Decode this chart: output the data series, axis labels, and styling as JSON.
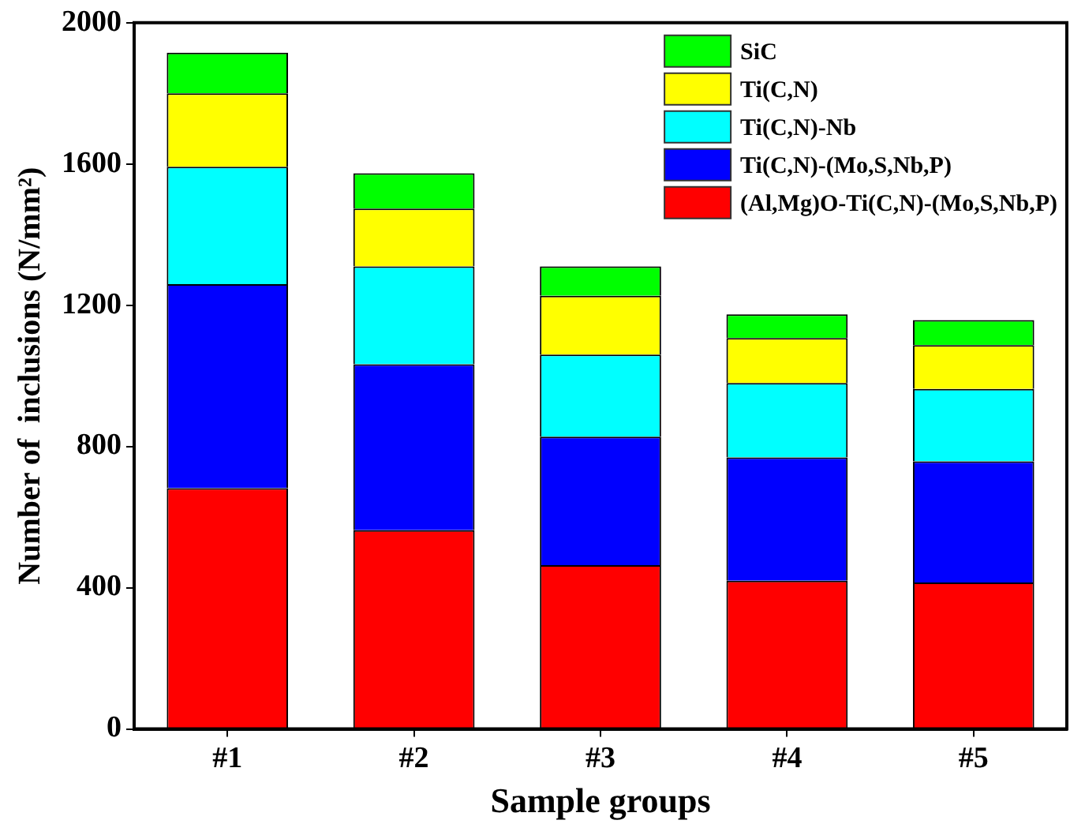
{
  "chart_data": {
    "type": "bar",
    "stacked": true,
    "xlabel": "Sample groups",
    "ylabel": "Number of  inclusions (N/mm²)",
    "categories": [
      "#1",
      "#2",
      "#3",
      "#4",
      "#5"
    ],
    "series": [
      {
        "name": "(Al,Mg)O-Ti(C,N)-(Mo,S,Nb,P)",
        "color": "#ff0000",
        "values": [
          682,
          563,
          464,
          420,
          415
        ]
      },
      {
        "name": "Ti(C,N)-(Mo,S,Nb,P)",
        "color": "#0000ff",
        "values": [
          578,
          470,
          364,
          349,
          343
        ]
      },
      {
        "name": "Ti(C,N)-Nb",
        "color": "#00ffff",
        "values": [
          332,
          277,
          232,
          211,
          205
        ]
      },
      {
        "name": "Ti(C,N)",
        "color": "#ffff00",
        "values": [
          208,
          164,
          167,
          127,
          124
        ]
      },
      {
        "name": "SiC",
        "color": "#00ff00",
        "values": [
          115,
          100,
          83,
          67,
          71
        ]
      }
    ],
    "ylim": [
      0,
      2000
    ],
    "yticks": [
      0,
      400,
      800,
      1200,
      1600,
      2000
    ],
    "grid": false,
    "legend": "top right"
  }
}
